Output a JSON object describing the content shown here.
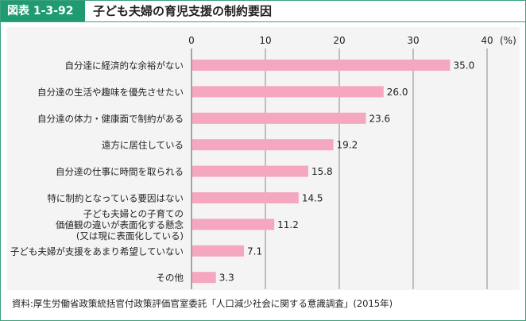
{
  "header": {
    "figure_label": "図表 1-3-92",
    "title": "子ども夫婦の育児支援の制約要因"
  },
  "chart_data": {
    "type": "bar",
    "orientation": "horizontal",
    "title": "子ども夫婦の育児支援の制約要因",
    "unit_label": "(%)",
    "xlim": [
      0,
      40
    ],
    "ticks": [
      0,
      10,
      20,
      30,
      40
    ],
    "grid": true,
    "bar_color": "#f4a7bf",
    "categories": [
      [
        "自分達に経済的な余裕がない"
      ],
      [
        "自分達の生活や趣味を優先させたい"
      ],
      [
        "自分達の体力・健康面で制約がある"
      ],
      [
        "遠方に居住している"
      ],
      [
        "自分達の仕事に時間を取られる"
      ],
      [
        "特に制約となっている要因はない"
      ],
      [
        "子ども夫婦との子育ての",
        "価値観の違いが表面化する懸念",
        "(又は現に表面化している)"
      ],
      [
        "子ども夫婦が支援をあまり希望していない"
      ],
      [
        "その他"
      ]
    ],
    "values": [
      35.0,
      26.0,
      23.6,
      19.2,
      15.8,
      14.5,
      11.2,
      7.1,
      3.3
    ],
    "value_labels": [
      "35.0",
      "26.0",
      "23.6",
      "19.2",
      "15.8",
      "14.5",
      "11.2",
      "7.1",
      "3.3"
    ]
  },
  "source": "資料:厚生労働省政策統括官付政策評価官室委託「人口減少社会に関する意識調査」(2015年)"
}
